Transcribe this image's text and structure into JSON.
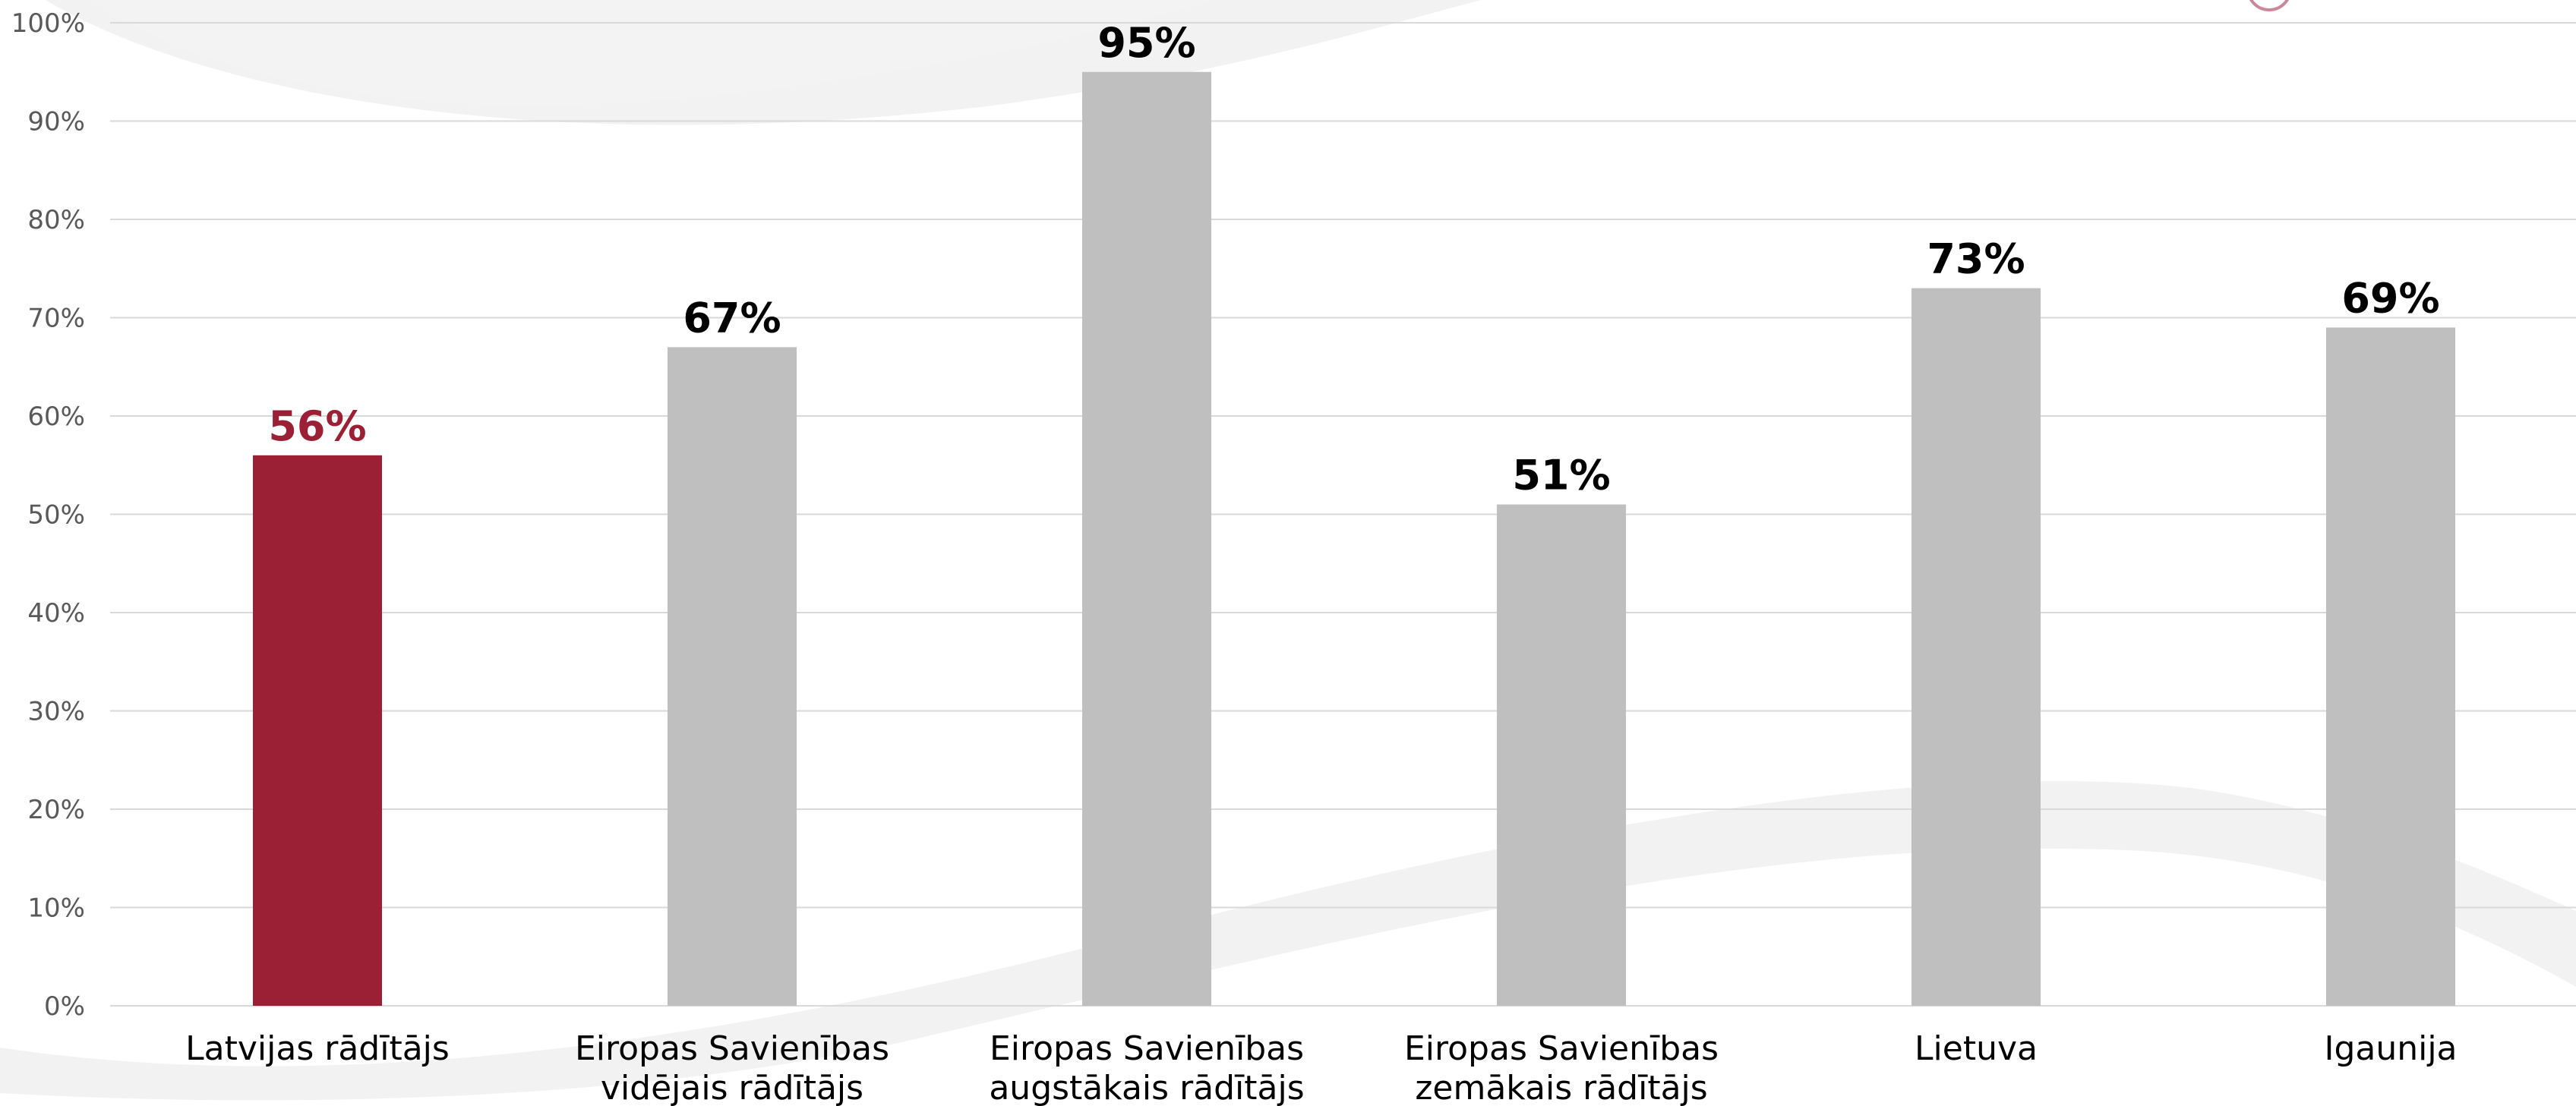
{
  "chart_data": {
    "type": "bar",
    "categories": [
      [
        "Latvijas rādītājs"
      ],
      [
        "Eiropas Savienības",
        "vidējais rādītājs"
      ],
      [
        "Eiropas Savienības",
        "augstākais rādītājs"
      ],
      [
        "Eiropas Savienības",
        "zemākais rādītājs"
      ],
      [
        "Lietuva"
      ],
      [
        "Igaunija"
      ]
    ],
    "values": [
      56,
      67,
      95,
      51,
      73,
      69
    ],
    "value_labels": [
      "56%",
      "67%",
      "95%",
      "51%",
      "73%",
      "69%"
    ],
    "ylim": [
      0,
      100
    ],
    "yticks": [
      0,
      10,
      20,
      30,
      40,
      50,
      60,
      70,
      80,
      90,
      100
    ],
    "ytick_labels": [
      "0%",
      "10%",
      "20%",
      "30%",
      "40%",
      "50%",
      "60%",
      "70%",
      "80%",
      "90%",
      "100%"
    ],
    "grid": true,
    "legend": "none",
    "colors": {
      "highlight_bar": "#9B2035",
      "bar": "#BFBFBF",
      "highlight_label": "#9B2035",
      "label": "#000000",
      "gridline": "#D9D9D9",
      "tick_text": "#595959",
      "background_swoosh": "#F2F2F2"
    },
    "highlight_index": 0
  }
}
